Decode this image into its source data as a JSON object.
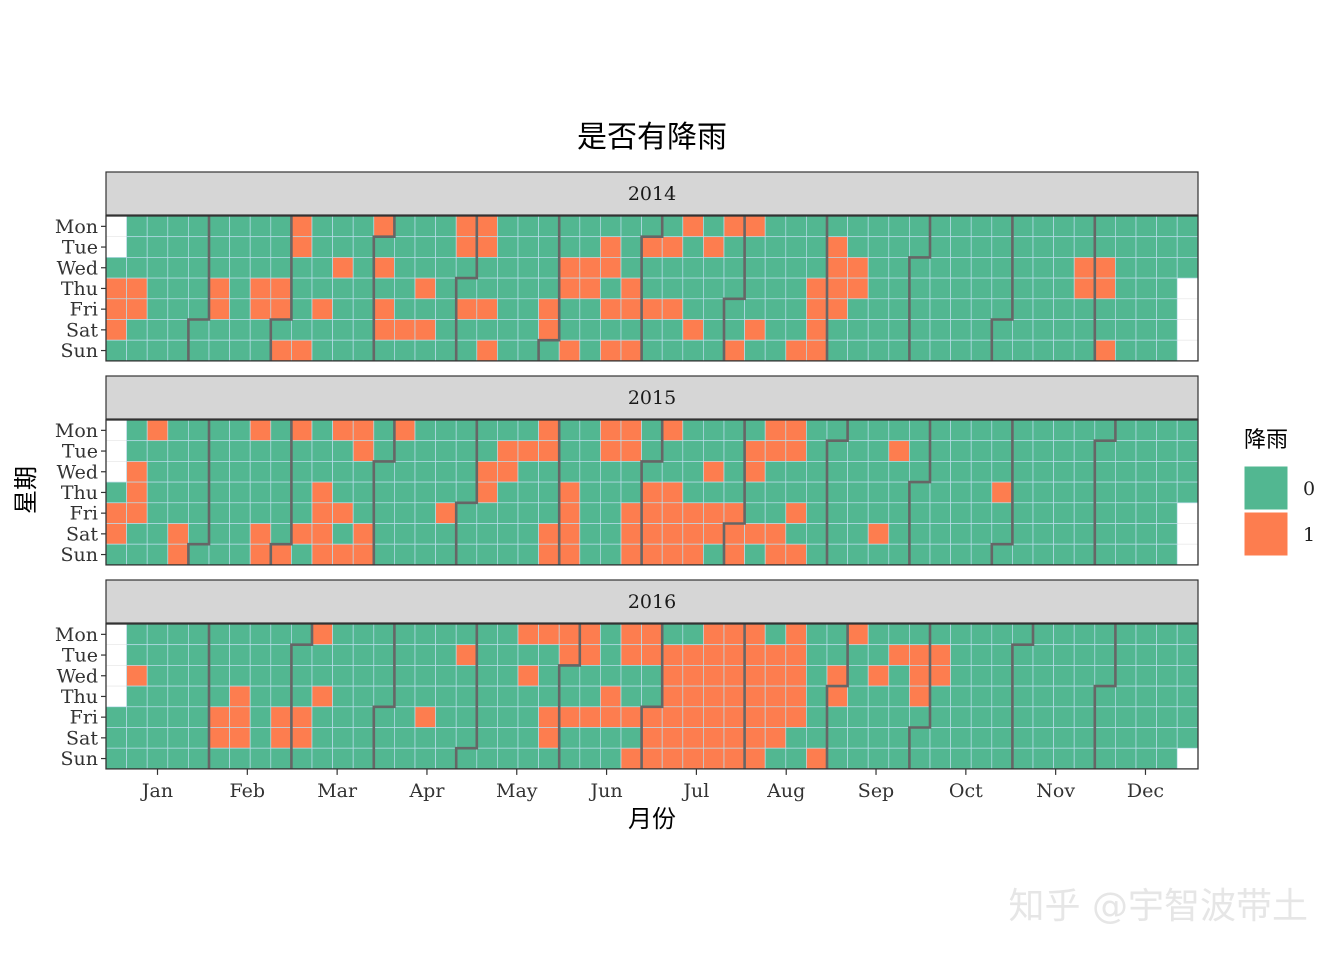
{
  "chart_data": {
    "type": "heatmap",
    "title": "是否有降雨",
    "xlabel": "月份",
    "ylabel": "星期",
    "facets": [
      {
        "label": "2014",
        "year": 2014,
        "rain_days": [
          [
            "2014-01-02",
            "2014-01-03",
            "2014-01-04"
          ],
          [
            "2014-01-09",
            "2014-01-10"
          ],
          [
            "2014-02-06",
            "2014-02-07"
          ],
          [
            "2014-02-20",
            "2014-02-21"
          ],
          [
            "2014-02-27",
            "2014-02-28"
          ],
          [
            "2014-03-02",
            "2014-03-03",
            "2014-03-04"
          ],
          [
            "2014-03-09"
          ],
          [
            "2014-03-14"
          ],
          [
            "2014-03-19"
          ],
          [
            "2014-03-31",
            "2014-04-02",
            "2014-04-04",
            "2014-04-05"
          ],
          [
            "2014-04-12"
          ],
          [
            "2014-04-17",
            "2014-04-19"
          ],
          [
            "2014-04-28",
            "2014-04-29"
          ],
          [
            "2014-05-02",
            "2014-05-05",
            "2014-05-06",
            "2014-05-09",
            "2014-05-11"
          ],
          [
            "2014-05-30",
            "2014-05-31"
          ],
          [
            "2014-06-04",
            "2014-06-05",
            "2014-06-08",
            "2014-06-11",
            "2014-06-12"
          ],
          [
            "2014-06-17",
            "2014-06-18",
            "2014-06-20"
          ],
          [
            "2014-06-22",
            "2014-06-26",
            "2014-06-27",
            "2014-06-29"
          ],
          [
            "2014-07-01",
            "2014-07-04",
            "2014-07-08",
            "2014-07-11"
          ],
          [
            "2014-07-14",
            "2014-07-19"
          ],
          [
            "2014-07-22",
            "2014-07-28",
            "2014-08-03",
            "2014-08-04",
            "2014-08-09"
          ],
          [
            "2014-08-24"
          ],
          [
            "2014-08-28",
            "2014-08-29",
            "2014-08-30",
            "2014-08-31"
          ],
          [
            "2014-09-02",
            "2014-09-03",
            "2014-09-04",
            "2014-09-05"
          ],
          [
            "2014-09-10",
            "2014-09-11"
          ],
          [
            "2014-11-26",
            "2014-11-27"
          ],
          [
            "2014-12-03",
            "2014-12-04",
            "2014-12-07"
          ]
        ]
      },
      {
        "label": "2015",
        "year": 2015,
        "rain_days": [
          [
            "2015-01-02",
            "2015-01-03"
          ],
          [
            "2015-01-07",
            "2015-01-08",
            "2015-01-09"
          ],
          [
            "2015-01-12"
          ],
          [
            "2015-01-24",
            "2015-01-25"
          ],
          [
            "2015-02-16"
          ],
          [
            "2015-02-21",
            "2015-02-22"
          ],
          [
            "2015-03-01",
            "2015-03-02"
          ],
          [
            "2015-03-07",
            "2015-03-12",
            "2015-03-13",
            "2015-03-14",
            "2015-03-15",
            "2015-03-16"
          ],
          [
            "2015-03-20",
            "2015-03-22",
            "2015-03-23"
          ],
          [
            "2015-03-24",
            "2015-03-28",
            "2015-03-29"
          ],
          [
            "2015-04-06"
          ],
          [
            "2015-04-24"
          ],
          [
            "2015-05-06",
            "2015-05-07"
          ],
          [
            "2015-05-12",
            "2015-05-13"
          ],
          [
            "2015-05-19"
          ],
          [
            "2015-05-25",
            "2015-05-26"
          ],
          [
            "2015-05-30",
            "2015-05-31"
          ],
          [
            "2015-06-04",
            "2015-06-05",
            "2015-06-06",
            "2015-06-07"
          ],
          [
            "2015-06-15",
            "2015-06-16"
          ],
          [
            "2015-06-22",
            "2015-06-23",
            "2015-06-26",
            "2015-06-27",
            "2015-06-28"
          ],
          [
            "2015-07-02",
            "2015-07-03",
            "2015-07-04",
            "2015-07-05",
            "2015-07-06",
            "2015-07-09",
            "2015-07-10",
            "2015-07-11",
            "2015-07-12"
          ],
          [
            "2015-07-17",
            "2015-07-18",
            "2015-07-19"
          ],
          [
            "2015-07-22"
          ],
          [
            "2015-07-24",
            "2015-07-25"
          ],
          [
            "2015-07-31",
            "2015-08-01",
            "2015-08-02",
            "2015-08-04",
            "2015-08-05"
          ],
          [
            "2015-08-08"
          ],
          [
            "2015-08-10",
            "2015-08-11"
          ],
          [
            "2015-08-15",
            "2015-08-16",
            "2015-08-17",
            "2015-08-18"
          ],
          [
            "2015-08-21"
          ],
          [
            "2015-08-23"
          ],
          [
            "2015-09-19"
          ],
          [
            "2015-09-22"
          ],
          [
            "2015-10-29"
          ]
        ]
      },
      {
        "label": "2016",
        "year": 2016,
        "rain_days": [
          [
            "2016-01-06"
          ],
          [
            "2016-02-05",
            "2016-02-06"
          ],
          [
            "2016-02-11",
            "2016-02-12",
            "2016-02-13"
          ],
          [
            "2016-02-26",
            "2016-02-27"
          ],
          [
            "2016-03-04",
            "2016-03-05"
          ],
          [
            "2016-03-07"
          ],
          [
            "2016-03-10"
          ],
          [
            "2016-04-15"
          ],
          [
            "2016-04-26"
          ],
          [
            "2016-05-16"
          ],
          [
            "2016-05-18"
          ],
          [
            "2016-05-23"
          ],
          [
            "2016-05-27",
            "2016-05-28"
          ],
          [
            "2016-05-30",
            "2016-05-31"
          ],
          [
            "2016-06-03"
          ],
          [
            "2016-06-06",
            "2016-06-07",
            "2016-06-10"
          ],
          [
            "2016-06-16",
            "2016-06-17"
          ],
          [
            "2016-06-20",
            "2016-06-21",
            "2016-06-24"
          ],
          [
            "2016-06-26",
            "2016-06-27",
            "2016-06-28",
            "2016-07-01"
          ],
          [
            "2016-07-02",
            "2016-07-03",
            "2016-07-05",
            "2016-07-06",
            "2016-07-07",
            "2016-07-08",
            "2016-07-09",
            "2016-07-10"
          ],
          [
            "2016-07-12",
            "2016-07-13",
            "2016-07-14",
            "2016-07-15",
            "2016-07-16",
            "2016-07-17"
          ],
          [
            "2016-07-18",
            "2016-07-19",
            "2016-07-20",
            "2016-07-21",
            "2016-07-22",
            "2016-07-23",
            "2016-07-24"
          ],
          [
            "2016-07-25",
            "2016-07-26",
            "2016-07-27",
            "2016-07-28",
            "2016-07-29",
            "2016-07-30",
            "2016-07-31"
          ],
          [
            "2016-08-01",
            "2016-08-02",
            "2016-08-03",
            "2016-08-04",
            "2016-08-05",
            "2016-08-06",
            "2016-08-07"
          ],
          [
            "2016-08-09",
            "2016-08-10",
            "2016-08-11",
            "2016-08-12",
            "2016-08-13"
          ],
          [
            "2016-08-15",
            "2016-08-16",
            "2016-08-17",
            "2016-08-18",
            "2016-08-19"
          ],
          [
            "2016-08-28"
          ],
          [
            "2016-08-31",
            "2016-09-01"
          ],
          [
            "2016-09-05"
          ],
          [
            "2016-09-14"
          ],
          [
            "2016-09-20"
          ],
          [
            "2016-09-27",
            "2016-09-28",
            "2016-09-29"
          ],
          [
            "2016-10-04",
            "2016-10-05"
          ]
        ]
      }
    ],
    "y_categories": [
      "Mon",
      "Tue",
      "Wed",
      "Thu",
      "Fri",
      "Sat",
      "Sun"
    ],
    "x_ticks": [
      "Jan",
      "Feb",
      "Mar",
      "Apr",
      "May",
      "Jun",
      "Jul",
      "Aug",
      "Sep",
      "Oct",
      "Nov",
      "Dec"
    ],
    "legend": {
      "title": "降雨",
      "position": "right",
      "entries": [
        {
          "label": "0",
          "color": "#52b791"
        },
        {
          "label": "1",
          "color": "#fd7d4f"
        }
      ]
    },
    "grid": false
  },
  "watermark": "知乎 @宇智波带土",
  "colors": {
    "no_rain": "#52b791",
    "rain": "#fd7d4f",
    "tile_border": "#b9dcea",
    "month_boundary": "#666666",
    "strip_fill": "#d6d6d6"
  }
}
